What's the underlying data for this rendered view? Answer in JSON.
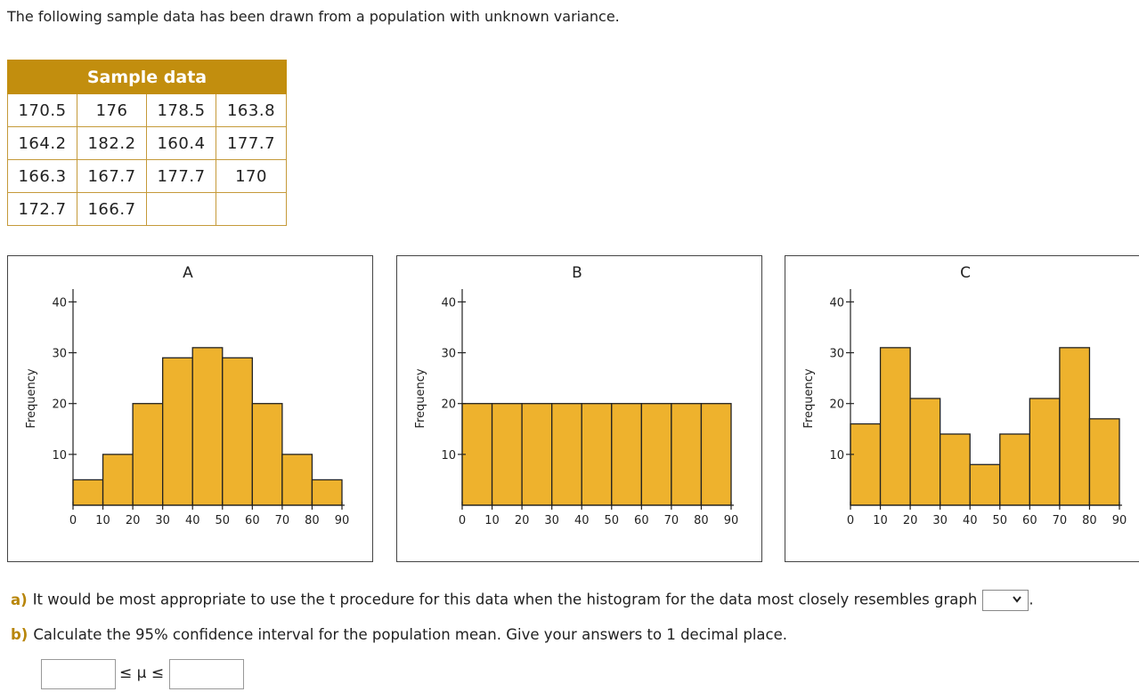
{
  "intro_text": "The following sample data has been drawn from a population with unknown variance.",
  "sample_table": {
    "header": "Sample data",
    "rows": [
      [
        "170.5",
        "176",
        "178.5",
        "163.8"
      ],
      [
        "164.2",
        "182.2",
        "160.4",
        "177.7"
      ],
      [
        "166.3",
        "167.7",
        "177.7",
        "170"
      ],
      [
        "172.7",
        "166.7",
        "",
        ""
      ]
    ]
  },
  "chart_data": [
    {
      "type": "bar",
      "title": "A",
      "ylabel": "Frequency",
      "x_ticks": [
        "0",
        "10",
        "20",
        "30",
        "40",
        "50",
        "60",
        "70",
        "80",
        "90"
      ],
      "y_ticks": [
        "10",
        "20",
        "30",
        "40"
      ],
      "values": [
        5,
        10,
        20,
        29,
        31,
        29,
        20,
        10,
        5
      ],
      "ylim": [
        0,
        42
      ],
      "xlim": [
        0,
        90
      ],
      "bar_color": "#eeb22d"
    },
    {
      "type": "bar",
      "title": "B",
      "ylabel": "Frequency",
      "x_ticks": [
        "0",
        "10",
        "20",
        "30",
        "40",
        "50",
        "60",
        "70",
        "80",
        "90"
      ],
      "y_ticks": [
        "10",
        "20",
        "30",
        "40"
      ],
      "values": [
        20,
        20,
        20,
        20,
        20,
        20,
        20,
        20,
        20
      ],
      "ylim": [
        0,
        42
      ],
      "xlim": [
        0,
        90
      ],
      "bar_color": "#eeb22d"
    },
    {
      "type": "bar",
      "title": "C",
      "ylabel": "Frequency",
      "x_ticks": [
        "0",
        "10",
        "20",
        "30",
        "40",
        "50",
        "60",
        "70",
        "80",
        "90"
      ],
      "y_ticks": [
        "10",
        "20",
        "30",
        "40"
      ],
      "values": [
        16,
        31,
        21,
        14,
        8,
        14,
        21,
        31,
        17
      ],
      "ylim": [
        0,
        42
      ],
      "xlim": [
        0,
        90
      ],
      "bar_color": "#eeb22d"
    }
  ],
  "question_a": {
    "label": "a)",
    "text": "It would be most appropriate to use the t procedure for this data when the histogram for the data most closely resembles graph",
    "dropdown_value": "",
    "after": "."
  },
  "question_b": {
    "label": "b)",
    "text": "Calculate the 95% confidence interval for the population mean. Give your answers to 1 decimal place.",
    "lower_value": "",
    "upper_value": "",
    "inequality": "≤ μ ≤"
  },
  "icons": {
    "dropdown": "chevron-down-icon"
  }
}
